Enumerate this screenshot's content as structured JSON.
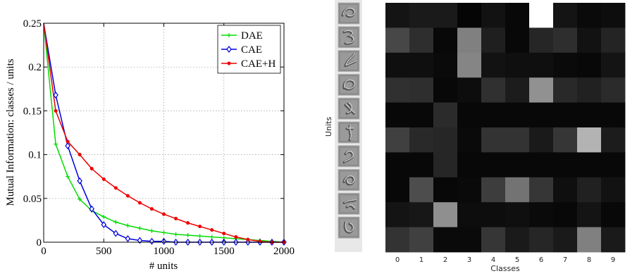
{
  "chart_data": [
    {
      "type": "line",
      "title": "",
      "xlabel": "# units",
      "ylabel": "Mutual Information: classes / units",
      "xlim": [
        0,
        2000
      ],
      "ylim": [
        0,
        0.25
      ],
      "xticks": [
        0,
        500,
        1000,
        1500,
        2000
      ],
      "xtick_labels": [
        "0",
        "500",
        "1000",
        "1500",
        "2000"
      ],
      "yticks": [
        0,
        0.05,
        0.1,
        0.15,
        0.2,
        0.25
      ],
      "ytick_labels": [
        "0",
        "0.05",
        "0.1",
        "0.15",
        "0.2",
        "0.25"
      ],
      "grid": true,
      "legend_position": "top-right",
      "series": [
        {
          "name": "DAE",
          "color": "#00dd00",
          "marker": "plus",
          "x": [
            0,
            100,
            200,
            300,
            400,
            500,
            600,
            700,
            800,
            900,
            1000,
            1100,
            1200,
            1300,
            1400,
            1500,
            1600,
            1700,
            1800,
            1900,
            2000
          ],
          "y": [
            0.25,
            0.112,
            0.075,
            0.049,
            0.036,
            0.029,
            0.023,
            0.019,
            0.016,
            0.013,
            0.011,
            0.009,
            0.008,
            0.007,
            0.006,
            0.005,
            0.004,
            0.003,
            0.002,
            0.001,
            0.0
          ]
        },
        {
          "name": "CAE",
          "color": "#0000dd",
          "marker": "diamond",
          "x": [
            0,
            100,
            200,
            300,
            400,
            500,
            600,
            700,
            800,
            900,
            1000,
            1100,
            1200,
            1300,
            1400,
            1500,
            1600,
            1700,
            1800,
            1900,
            2000
          ],
          "y": [
            0.25,
            0.168,
            0.11,
            0.07,
            0.038,
            0.02,
            0.01,
            0.004,
            0.002,
            0.001,
            0.001,
            0.0,
            0.0,
            0.0,
            0.0,
            0.0,
            0.0,
            0.0,
            0.0,
            0.0,
            0.0
          ]
        },
        {
          "name": "CAE+H",
          "color": "#ee0000",
          "marker": "dot",
          "x": [
            0,
            100,
            200,
            300,
            400,
            500,
            600,
            700,
            800,
            900,
            1000,
            1100,
            1200,
            1300,
            1400,
            1500,
            1600,
            1700,
            1800,
            1900,
            2000
          ],
          "y": [
            0.25,
            0.15,
            0.115,
            0.1,
            0.084,
            0.072,
            0.062,
            0.053,
            0.045,
            0.038,
            0.032,
            0.027,
            0.022,
            0.018,
            0.014,
            0.01,
            0.006,
            0.003,
            0.001,
            0.0,
            0.0
          ]
        }
      ]
    },
    {
      "type": "heatmap",
      "xlabel": "Classes",
      "ylabel": "Units",
      "x_tick_labels": [
        "0",
        "1",
        "2",
        "3",
        "4",
        "5",
        "6",
        "7",
        "8",
        "9"
      ],
      "rows": 10,
      "cols": 10,
      "colormap": "grayscale (black = 0, white = 1)",
      "values": [
        [
          0.08,
          0.1,
          0.1,
          0.02,
          0.07,
          0.03,
          1.0,
          0.08,
          0.04,
          0.05
        ],
        [
          0.28,
          0.18,
          0.03,
          0.5,
          0.12,
          0.03,
          0.15,
          0.18,
          0.07,
          0.14
        ],
        [
          0.06,
          0.06,
          0.04,
          0.52,
          0.07,
          0.06,
          0.06,
          0.04,
          0.03,
          0.08
        ],
        [
          0.19,
          0.18,
          0.03,
          0.05,
          0.19,
          0.11,
          0.57,
          0.16,
          0.13,
          0.17
        ],
        [
          0.03,
          0.03,
          0.17,
          0.03,
          0.03,
          0.03,
          0.03,
          0.03,
          0.03,
          0.03
        ],
        [
          0.25,
          0.16,
          0.15,
          0.04,
          0.2,
          0.2,
          0.1,
          0.21,
          0.7,
          0.11
        ],
        [
          0.03,
          0.03,
          0.15,
          0.03,
          0.03,
          0.03,
          0.03,
          0.03,
          0.03,
          0.03
        ],
        [
          0.03,
          0.3,
          0.03,
          0.04,
          0.24,
          0.45,
          0.21,
          0.06,
          0.13,
          0.07
        ],
        [
          0.08,
          0.09,
          0.56,
          0.05,
          0.05,
          0.06,
          0.04,
          0.03,
          0.08,
          0.03
        ],
        [
          0.2,
          0.25,
          0.04,
          0.04,
          0.21,
          0.1,
          0.15,
          0.1,
          0.5,
          0.1
        ]
      ]
    }
  ]
}
